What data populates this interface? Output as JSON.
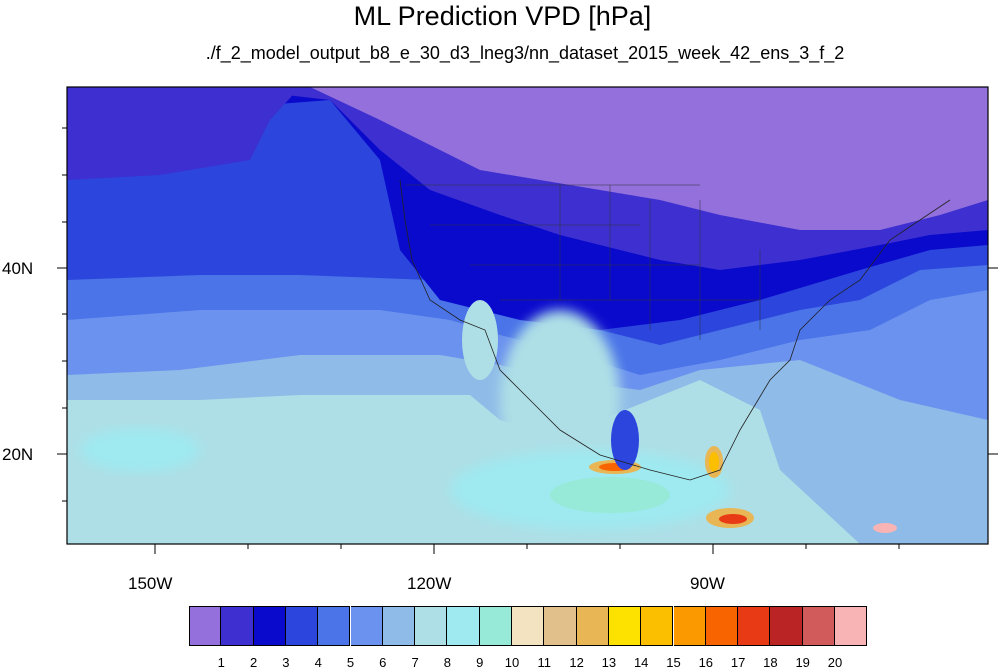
{
  "title": "ML Prediction VPD [hPa]",
  "subtitle": "./f_2_model_output_b8_e_30_d3_lneg3/nn_dataset_2015_week_42_ens_3_f_2",
  "axes": {
    "lat_labels": [
      "40N",
      "20N"
    ],
    "lon_labels": [
      "150W",
      "120W",
      "90W"
    ]
  },
  "colorbar": {
    "labels": [
      "1",
      "2",
      "3",
      "4",
      "5",
      "6",
      "7",
      "8",
      "9",
      "10",
      "11",
      "12",
      "13",
      "14",
      "15",
      "16",
      "17",
      "18",
      "19",
      "20"
    ],
    "colors": [
      "#9370db",
      "#3d2fd0",
      "#0a0acd",
      "#2b45dd",
      "#4a74e8",
      "#6b92ee",
      "#8fbbe8",
      "#aedfe6",
      "#9fe9f0",
      "#97ead8",
      "#f3e3c0",
      "#e2c08c",
      "#e8b655",
      "#fde200",
      "#fcbf00",
      "#fa9a00",
      "#f86400",
      "#e83a14",
      "#bb2424",
      "#d15a5a",
      "#f8b4b4"
    ]
  },
  "map_colors": {
    "ocean_far": "#aedfe6",
    "ocean_mid": "#8fbbe8",
    "coast_blue": "#6b92ee",
    "mid_blue": "#4a74e8",
    "blue": "#2b45dd",
    "deep_blue": "#0a0acd",
    "indigo": "#3d2fd0",
    "lavender": "#9370db"
  }
}
